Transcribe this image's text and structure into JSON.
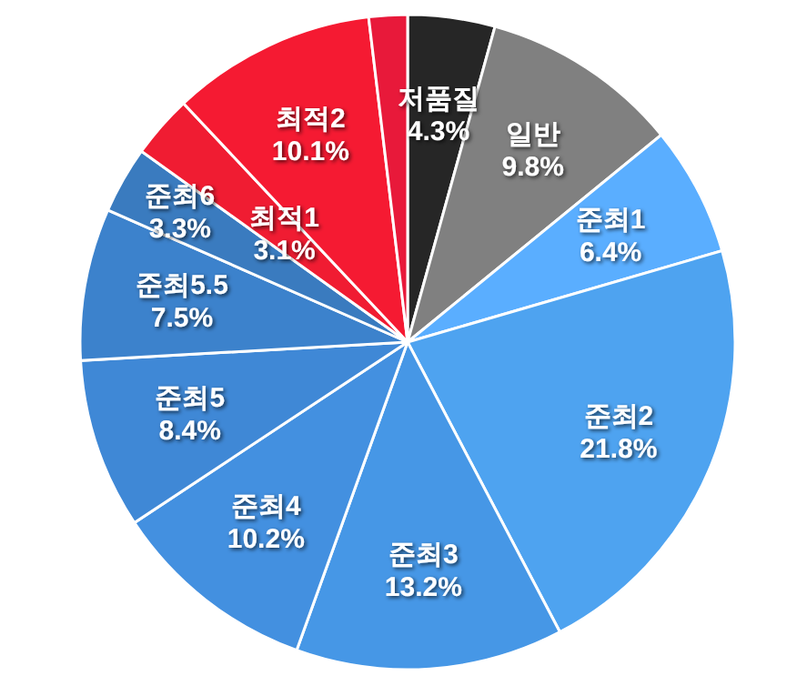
{
  "chart_data": {
    "type": "pie",
    "categories": [
      "저품질",
      "일반",
      "준최1",
      "준최2",
      "준최3",
      "준최4",
      "준최5",
      "준최5.5",
      "준최6",
      "최적1",
      "최적2",
      null
    ],
    "values": [
      4.3,
      9.8,
      6.4,
      21.8,
      13.2,
      10.2,
      8.4,
      7.5,
      3.3,
      3.1,
      10.1,
      1.9
    ],
    "colors": [
      "#262626",
      "#808080",
      "#5aaeff",
      "#4ea3f0",
      "#4697e6",
      "#4390e0",
      "#3f88d6",
      "#3c82cc",
      "#3a7bbf",
      "#f01c32",
      "#f51a32",
      "#e8193a"
    ],
    "value_labels": [
      "4.3%",
      "9.8%",
      "6.4%",
      "21.8%",
      "13.2%",
      "10.2%",
      "8.4%",
      "7.5%",
      "3.3%",
      "3.1%",
      "10.1%",
      null
    ]
  }
}
